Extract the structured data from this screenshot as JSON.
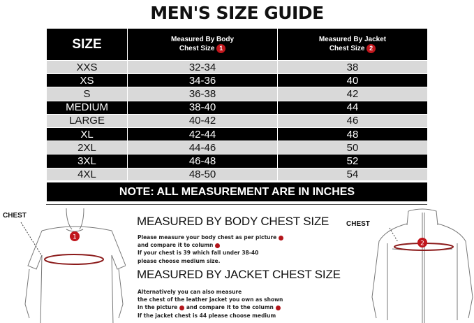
{
  "title": "MEN'S SIZE GUIDE",
  "table": {
    "headers": {
      "size": "SIZE",
      "body_line1": "Measured By Body",
      "body_line2": "Chest Size",
      "body_badge": "1",
      "jacket_line1": "Measured By Jacket",
      "jacket_line2": "Chest Size",
      "jacket_badge": "2"
    },
    "rows": [
      {
        "size": "XXS",
        "body": "32-34",
        "jacket": "38"
      },
      {
        "size": "XS",
        "body": "34-36",
        "jacket": "40"
      },
      {
        "size": "S",
        "body": "36-38",
        "jacket": "42"
      },
      {
        "size": "MEDIUM",
        "body": "38-40",
        "jacket": "44"
      },
      {
        "size": "LARGE",
        "body": "40-42",
        "jacket": "46"
      },
      {
        "size": "XL",
        "body": "42-44",
        "jacket": "48"
      },
      {
        "size": "2XL",
        "body": "44-46",
        "jacket": "50"
      },
      {
        "size": "3XL",
        "body": "46-48",
        "jacket": "52"
      },
      {
        "size": "4XL",
        "body": "48-50",
        "jacket": "54"
      }
    ],
    "note": "NOTE: ALL MEASUREMENT ARE IN INCHES"
  },
  "body_section": {
    "heading": "MEASURED BY BODY CHEST SIZE",
    "lines": [
      "Please measure your body chest as per picture",
      "and compare it to column",
      "If your chest is 39 which fall under 38-40",
      "please choose medium size."
    ]
  },
  "jacket_section": {
    "heading": "MEASURED BY JACKET CHEST SIZE",
    "lines": [
      "Alternatively you can also measure",
      "the chest of the leather jacket you own as shown",
      "in the picture",
      "and compare it to the column",
      "If the jacket chest is 44 please choose medium"
    ]
  },
  "left_figure": {
    "label": "CHEST",
    "badge": "1"
  },
  "right_figure": {
    "label": "CHEST",
    "badge": "2"
  },
  "colors": {
    "badge": "#c0161c",
    "dark_row": "#000000",
    "light_row": "#d9d9d9"
  }
}
